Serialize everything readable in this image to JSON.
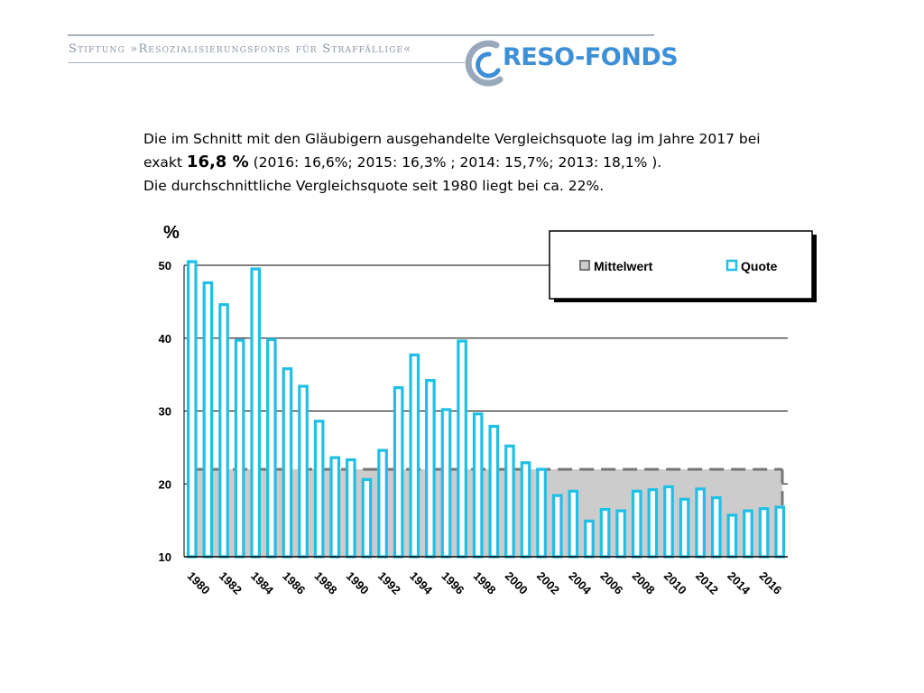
{
  "header": {
    "foundation_name": "Stiftung »Resozialisierungsfonds für Straffällige«",
    "logo_text": "RESO-FONDS"
  },
  "intro": {
    "line1": "Die im Schnitt mit den Gläubigern ausgehandelte Vergleichsquote lag im Jahre 2017 bei",
    "line2_prefix": "exakt ",
    "line2_highlight": "16,8 %",
    "line2_suffix": "  (2016: 16,6%; 2015: 16,3% ; 2014: 15,7%; 2013: 18,1% ).",
    "line3": "Die durchschnittliche Vergleichsquote seit 1980 liegt bei ca. 22%."
  },
  "colors": {
    "bar_fill": "#ffffff",
    "bar_stroke": "#1ec0e6",
    "mean_fill": "#cccccc",
    "mean_stroke": "#777777"
  },
  "chart_data": {
    "type": "bar",
    "ylabel": "%",
    "ylim": [
      10,
      50
    ],
    "yticks": [
      10,
      20,
      30,
      40,
      50
    ],
    "grid": true,
    "legend_position": "top-right",
    "x_tick_labels": [
      "1980",
      "1982",
      "1984",
      "1986",
      "1988",
      "1990",
      "1992",
      "1994",
      "1996",
      "1998",
      "2000",
      "2002",
      "2004",
      "2006",
      "2008",
      "2010",
      "2012",
      "2014",
      "2016"
    ],
    "categories": [
      1980,
      1981,
      1982,
      1983,
      1984,
      1985,
      1986,
      1987,
      1988,
      1989,
      1990,
      1991,
      1992,
      1993,
      1994,
      1995,
      1996,
      1997,
      1998,
      1999,
      2000,
      2001,
      2002,
      2003,
      2004,
      2005,
      2006,
      2007,
      2008,
      2009,
      2010,
      2011,
      2012,
      2013,
      2014,
      2015,
      2016,
      2017
    ],
    "series": [
      {
        "name": "Quote",
        "type": "bar",
        "values": [
          50.5,
          47.6,
          44.6,
          39.7,
          49.5,
          39.8,
          35.8,
          33.4,
          28.6,
          23.6,
          23.3,
          20.6,
          24.6,
          33.2,
          37.7,
          34.2,
          30.2,
          39.6,
          29.6,
          27.9,
          25.2,
          22.9,
          22.0,
          18.4,
          19.0,
          14.9,
          16.5,
          16.3,
          19.0,
          19.2,
          19.6,
          17.9,
          19.3,
          18.1,
          15.7,
          16.3,
          16.6,
          16.8
        ]
      },
      {
        "name": "Mittelwert",
        "type": "area",
        "value": 22
      }
    ]
  }
}
